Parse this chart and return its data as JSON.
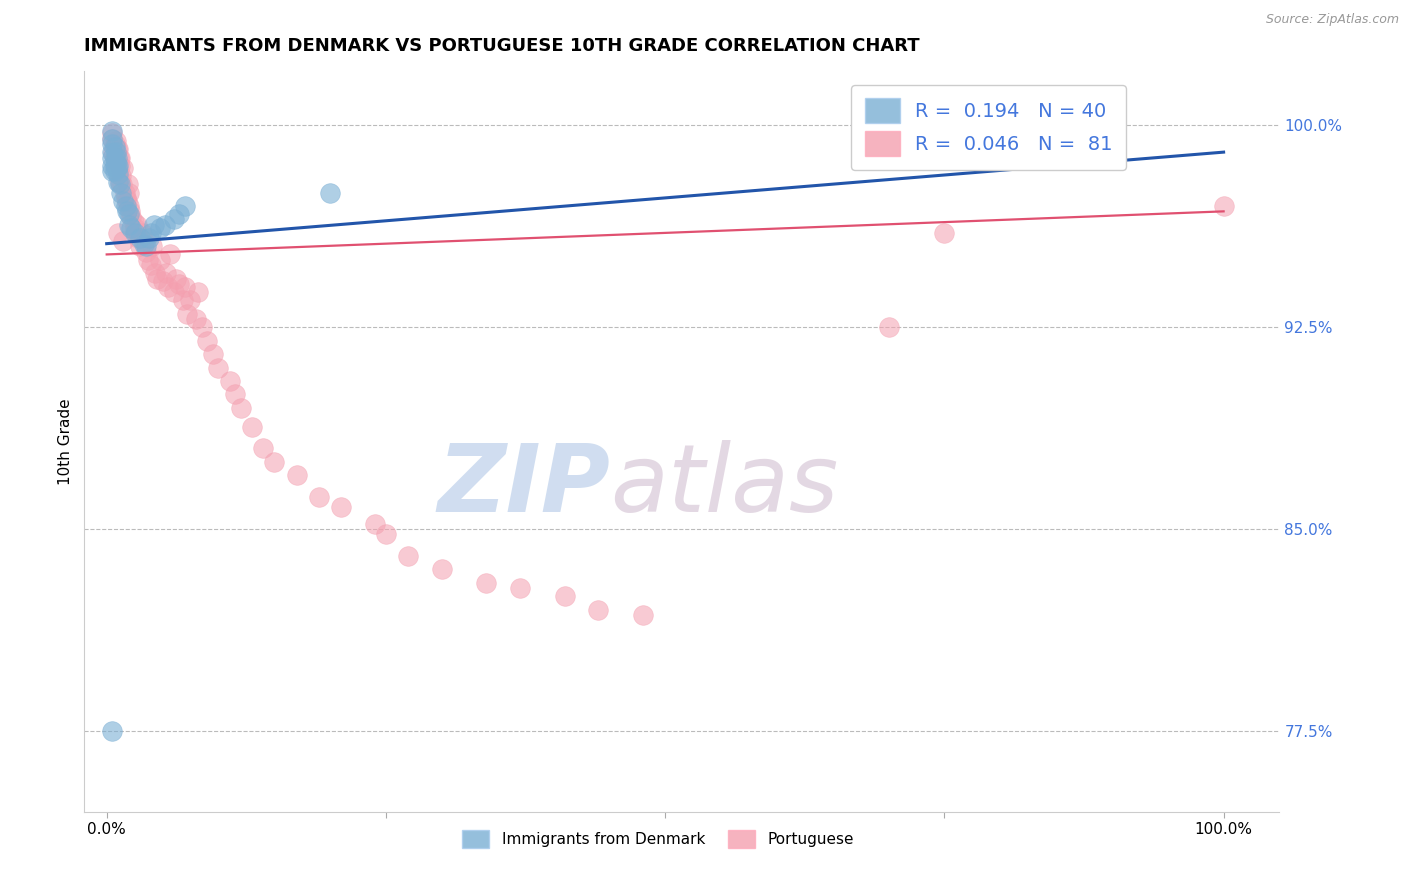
{
  "title": "IMMIGRANTS FROM DENMARK VS PORTUGUESE 10TH GRADE CORRELATION CHART",
  "source_text": "Source: ZipAtlas.com",
  "ylabel": "10th Grade",
  "legend_blue_label": "Immigrants from Denmark",
  "legend_pink_label": "Portuguese",
  "R_blue": 0.194,
  "N_blue": 40,
  "R_pink": 0.046,
  "N_pink": 81,
  "blue_color": "#7BAFD4",
  "pink_color": "#F4A0B0",
  "blue_line_color": "#2255AA",
  "pink_line_color": "#E05070",
  "ytick_labels": [
    "77.5%",
    "85.0%",
    "92.5%",
    "100.0%"
  ],
  "ytick_values": [
    0.775,
    0.85,
    0.925,
    1.0
  ],
  "ymin": 0.745,
  "ymax": 1.02,
  "xmin": -0.02,
  "xmax": 1.05,
  "blue_x": [
    0.005,
    0.005,
    0.005,
    0.005,
    0.005,
    0.005,
    0.005,
    0.007,
    0.007,
    0.007,
    0.007,
    0.008,
    0.008,
    0.009,
    0.009,
    0.01,
    0.01,
    0.01,
    0.012,
    0.013,
    0.015,
    0.017,
    0.018,
    0.02,
    0.02,
    0.022,
    0.025,
    0.03,
    0.033,
    0.035,
    0.038,
    0.04,
    0.042,
    0.048,
    0.052,
    0.06,
    0.065,
    0.07,
    0.2,
    0.005
  ],
  "blue_y": [
    0.998,
    0.995,
    0.993,
    0.99,
    0.988,
    0.985,
    0.983,
    0.992,
    0.988,
    0.985,
    0.983,
    0.99,
    0.986,
    0.988,
    0.984,
    0.985,
    0.982,
    0.979,
    0.978,
    0.975,
    0.972,
    0.97,
    0.968,
    0.967,
    0.963,
    0.962,
    0.96,
    0.958,
    0.956,
    0.955,
    0.958,
    0.96,
    0.963,
    0.962,
    0.963,
    0.965,
    0.967,
    0.97,
    0.975,
    0.775
  ],
  "pink_x": [
    0.005,
    0.006,
    0.007,
    0.008,
    0.008,
    0.009,
    0.01,
    0.01,
    0.011,
    0.012,
    0.012,
    0.013,
    0.014,
    0.015,
    0.016,
    0.017,
    0.018,
    0.019,
    0.02,
    0.02,
    0.021,
    0.022,
    0.024,
    0.025,
    0.026,
    0.027,
    0.028,
    0.03,
    0.032,
    0.033,
    0.035,
    0.037,
    0.04,
    0.041,
    0.043,
    0.045,
    0.048,
    0.05,
    0.053,
    0.055,
    0.057,
    0.06,
    0.062,
    0.065,
    0.068,
    0.07,
    0.072,
    0.075,
    0.08,
    0.082,
    0.085,
    0.09,
    0.095,
    0.1,
    0.11,
    0.115,
    0.12,
    0.13,
    0.14,
    0.15,
    0.17,
    0.19,
    0.21,
    0.24,
    0.25,
    0.27,
    0.3,
    0.34,
    0.37,
    0.41,
    0.44,
    0.48,
    0.005,
    0.007,
    0.009,
    0.012,
    0.7,
    0.01,
    0.015,
    1.0,
    0.75
  ],
  "pink_y": [
    0.997,
    0.99,
    0.988,
    0.994,
    0.987,
    0.985,
    0.991,
    0.983,
    0.988,
    0.985,
    0.979,
    0.981,
    0.978,
    0.984,
    0.975,
    0.973,
    0.972,
    0.978,
    0.975,
    0.97,
    0.968,
    0.966,
    0.964,
    0.962,
    0.96,
    0.963,
    0.958,
    0.955,
    0.96,
    0.957,
    0.953,
    0.95,
    0.948,
    0.955,
    0.945,
    0.943,
    0.95,
    0.942,
    0.945,
    0.94,
    0.952,
    0.938,
    0.943,
    0.941,
    0.935,
    0.94,
    0.93,
    0.935,
    0.928,
    0.938,
    0.925,
    0.92,
    0.915,
    0.91,
    0.905,
    0.9,
    0.895,
    0.888,
    0.88,
    0.875,
    0.87,
    0.862,
    0.858,
    0.852,
    0.848,
    0.84,
    0.835,
    0.83,
    0.828,
    0.825,
    0.82,
    0.818,
    0.995,
    0.993,
    0.991,
    0.988,
    0.925,
    0.96,
    0.957,
    0.97,
    0.96
  ],
  "watermark_zip": "ZIP",
  "watermark_atlas": "atlas",
  "title_fontsize": 13,
  "axis_label_fontsize": 11,
  "tick_fontsize": 11,
  "right_tick_color": "#4477DD",
  "legend_border_color": "#CCCCCC",
  "blue_trend_start_x": 0.0,
  "blue_trend_start_y": 0.956,
  "blue_trend_end_x": 1.0,
  "blue_trend_end_y": 0.99,
  "pink_trend_start_x": 0.0,
  "pink_trend_start_y": 0.952,
  "pink_trend_end_x": 1.0,
  "pink_trend_end_y": 0.968
}
